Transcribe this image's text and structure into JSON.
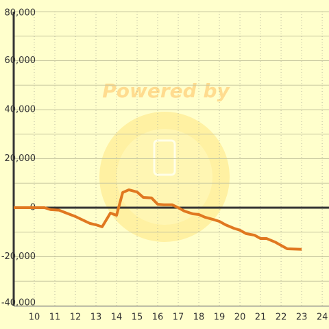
{
  "chart_data": {
    "type": "line",
    "watermark": "Powered by",
    "x": [
      9,
      10.5,
      10.8,
      11.2,
      11.5,
      12,
      12.3,
      12.7,
      13,
      13.3,
      13.7,
      14,
      14.3,
      14.6,
      15,
      15.3,
      15.7,
      16,
      16.3,
      16.7,
      17,
      17.3,
      17.7,
      18,
      18.3,
      18.7,
      19,
      19.3,
      19.7,
      20,
      20.3,
      20.7,
      21,
      21.3,
      21.7,
      22,
      22.3,
      23
    ],
    "series": [
      {
        "color": "#e07820",
        "values": [
          0,
          0,
          -800,
          -1000,
          -2000,
          -3600,
          -4800,
          -6400,
          -7000,
          -7800,
          -2200,
          -3100,
          6200,
          7300,
          6400,
          4200,
          4000,
          1400,
          1200,
          1200,
          0,
          -1400,
          -2500,
          -2800,
          -3900,
          -4800,
          -5600,
          -7000,
          -8400,
          -9200,
          -10600,
          -11200,
          -12600,
          -12600,
          -14000,
          -15400,
          -16800,
          -17000
        ]
      }
    ],
    "xlim": [
      9,
      24.33
    ],
    "xticks": [
      10,
      11,
      12,
      13,
      14,
      15,
      16,
      17,
      18,
      19,
      20,
      21,
      22,
      23,
      24
    ],
    "ylim": [
      -40000,
      80000
    ],
    "yticks": [
      {
        "value": -40000,
        "label": "-40,000"
      },
      {
        "value": -20000,
        "label": "-20,000"
      },
      0,
      {
        "value": 20000,
        "label": "20,000"
      },
      {
        "value": 40000,
        "label": "40,000"
      },
      {
        "value": 60000,
        "label": "60,000"
      },
      {
        "value": 80000,
        "label": "80,000"
      }
    ],
    "y_minor_ticks": [
      -30000,
      -10000,
      10000,
      30000,
      50000,
      70000
    ],
    "grid": true
  }
}
